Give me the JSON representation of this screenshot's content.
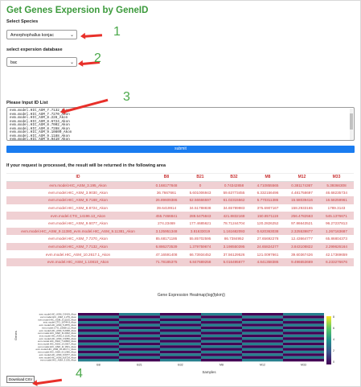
{
  "title": "Get Genes Expersion by GeneID",
  "species": {
    "label": "Select Species",
    "value": "Amorphophallus konjac"
  },
  "database": {
    "label": "select expersion database",
    "value": "bac"
  },
  "input": {
    "label": "Please Input ID List",
    "lines": [
      "evm.model.HIC_ASM_7.7132_Akon",
      "evm.model.HIC_ASM_7.7270_Akon",
      "evm.model.HIC_ASM_8.228_Akon",
      "evm.model.HIC_ASM_8.6724_Akon",
      "evm.model.HIC_ASM_8.7002_Akon",
      "evm.model.HIC_ASM_8.7288_Akon",
      "evm.model.HIC_ASM_9.10800_Akon",
      "evm.model.HIC_ASM_9.1188_Akon",
      "evm.model.HIC_ASM_9.9419_Akon",
      "evm.model.HIC_ASM_9.9931_Akon"
    ]
  },
  "submit_label": "submit",
  "result_note": "If your request is processed, the result will be returned in the following area",
  "table": {
    "columns": [
      "ID",
      "B8",
      "B21",
      "B32",
      "M8",
      "M12",
      "M33"
    ],
    "rows": [
      [
        "evm.model.HIC_ASM_3.195_Akon",
        "0.168177848",
        "0",
        "0.74342858",
        "4.710855565",
        "0.381174367",
        "5.39366308"
      ],
      [
        "evm.model.HIC_ASM_3.9030_Akon",
        "36.7667661",
        "5.601006943",
        "59.63773455",
        "6.332156496",
        "4.481758697",
        "46.68235734"
      ],
      [
        "evm.model.HIC_ASM_8.7168_Akon",
        "26.89609386",
        "52.56666597",
        "61.02315562",
        "5.770311386",
        "15.58039416",
        "16.58259961"
      ],
      [
        "evm.model.HIC_ASM_8.8724_Akon",
        "39.6419914",
        "34.51788838",
        "34.65789983",
        "375.6907167",
        "158.2933165",
        "1789.3143"
      ],
      [
        "evm.model.CTG_14196.13_Akon",
        "455.7466841",
        "288.5475843",
        "421.8832168",
        "150.8571119",
        "256.4782563",
        "545.1376671"
      ],
      [
        "evm.model.HIC_ASM_9.6077_Akon",
        "274.23469",
        "177.4685621",
        "78.71244704",
        "120.2826252",
        "97.86643521",
        "96.27237813"
      ],
      [
        "evm.model.HIC_ASM_9.11380_evm.model.HIC_ASM_9.11381_Akon",
        "3.125951348",
        "3.81633019",
        "1.161682093",
        "0.620363038",
        "2.325539877",
        "1.267163687"
      ],
      [
        "evm.model.HIC_ASM_7.7270_Akon",
        "85.68171186",
        "55.85702595",
        "86.7384952",
        "27.65692278",
        "12.43664777",
        "65.86804373"
      ],
      [
        "evm.model.HIC_ASM_7.7132_Akon",
        "6.886273539",
        "1.379759674",
        "3.198550395",
        "24.65824277",
        "3.843108822",
        "2.299626164"
      ],
      [
        "evm.model.HIC_ASM_10.2617.1_Akon",
        "47.16591408",
        "66.73934452",
        "37.56129526",
        "121.0097661",
        "39.60367426",
        "42.17369659"
      ],
      [
        "evm.model.HIC_ASM_1.10810_Akon",
        "71.78185375",
        "6.847689258",
        "5.016495677",
        "4.841358386",
        "9.496653669",
        "6.233276676"
      ]
    ]
  },
  "heatmap": {
    "title": "Gene Expression Heatmap(log(fpkm))",
    "xlabel": "Samples",
    "ylabel": "Genes",
    "samples": [
      "B8",
      "B21",
      "B32",
      "M8",
      "M12",
      "M33"
    ],
    "genes": [
      "evm.model.HIC_ASM_3.9419_Akon",
      "evm.model.HIC_ASM_1.279_Akon",
      "evm.model.HIC_ASM_9.11163_Akon",
      "evm.model.CTG_16744.8_Akon",
      "evm.model.HIC_ASM_5.4876_Akon",
      "evm.model.CTG_15658.12_Akon",
      "evm.model.HIC_ASM_5.2068_Akon",
      "evm.model.HIC_ASM_11.0002_Akon",
      "evm.model.HIC_ASM_0.1166_Akon",
      "evm.model.HIC_ASM_3.9350_Akon",
      "evm.model.HIC_ASM_7.10800_Akon",
      "evm.model.HIC_ASM_13.2007_Akon",
      "evm.model.HIC_ASM_11.1601_Akon",
      "evm.model.HIC_ASM_10.2617.1_Akon",
      "evm.model.HIC_ASM_9.11380_Akon",
      "evm.model.HIC_ASM_9.6077_Akon",
      "evm.model.HIC_ASM_8.8724_Akon",
      "evm.model.HIC_ASM_3.195_Akon"
    ],
    "colorbar_ticks": [
      "8",
      "6",
      "4",
      "2",
      "0"
    ]
  },
  "download_label": "Download CSV",
  "annotations": {
    "n1": "1",
    "n2": "2",
    "n3": "3",
    "n4": "4",
    "arrow_color": "#e8302a"
  }
}
